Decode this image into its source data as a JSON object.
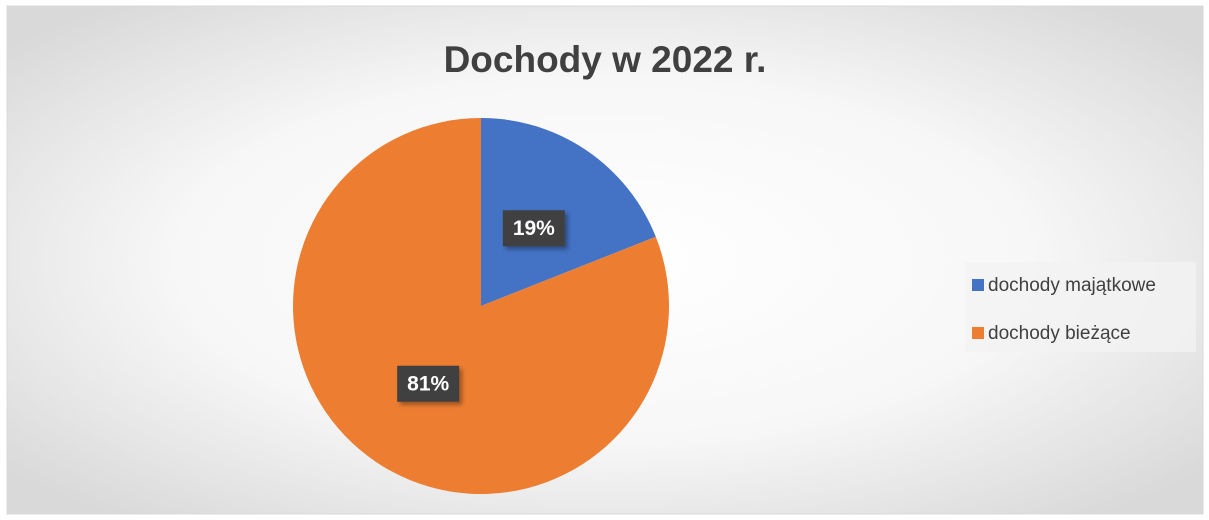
{
  "chart_data": {
    "type": "pie",
    "title": "Dochody w 2022 r.",
    "categories": [
      "dochody majątkowe",
      "dochody bieżące"
    ],
    "values": [
      19,
      81
    ],
    "value_labels": [
      "19%",
      "81%"
    ],
    "colors": [
      "#4472c4",
      "#ed7d31"
    ],
    "legend": "right"
  }
}
